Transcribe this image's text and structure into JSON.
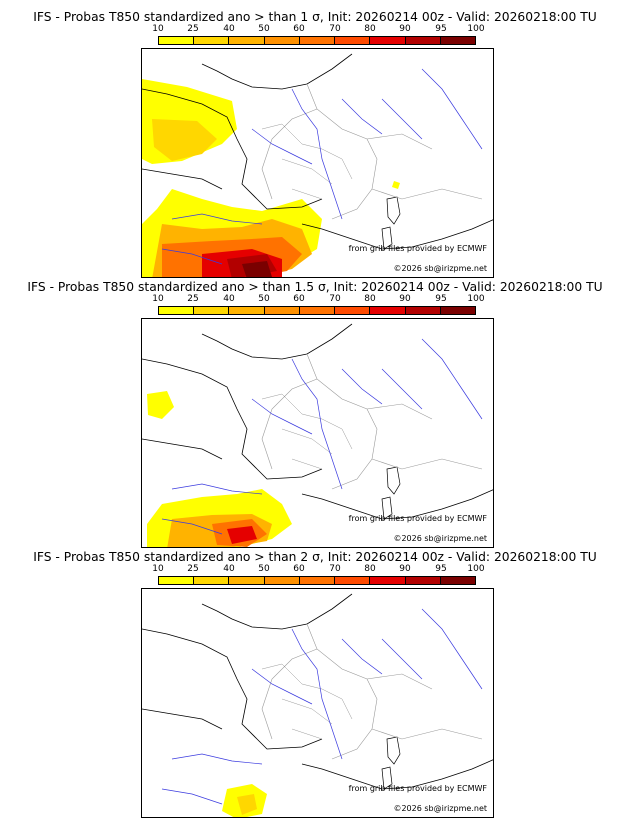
{
  "colorbar": {
    "ticks": [
      "10",
      "25",
      "40",
      "50",
      "60",
      "70",
      "80",
      "90",
      "95",
      "100"
    ],
    "colors": [
      "#ffff00",
      "#ffd700",
      "#ffb300",
      "#ff9100",
      "#ff7200",
      "#ff4a00",
      "#e50000",
      "#b20000",
      "#7a0000"
    ]
  },
  "panels": [
    {
      "title": "IFS - Probas T850  standardized ano > than 1 σ, Init: 20260214 00z - Valid: 20260218:00 TU"
    },
    {
      "title": "IFS - Probas T850  standardized ano > than 1.5 σ, Init: 20260214 00z - Valid: 20260218:00 TU"
    },
    {
      "title": "IFS - Probas T850  standardized ano > than 2 σ, Init: 20260214 00z - Valid: 20260218:00 TU"
    }
  ],
  "credits": {
    "source": "from grib files provided by ECMWF",
    "copyright": "©2026 sb@irizpme.net"
  },
  "map_colors": {
    "coast": "#000000",
    "rivers": "#3a3adf",
    "borders": "#9a9a9a"
  }
}
